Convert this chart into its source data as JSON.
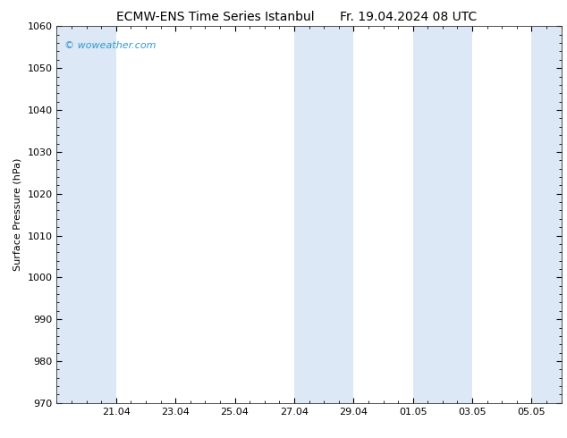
{
  "title_left": "ECMW-ENS Time Series Istanbul",
  "title_right": "Fr. 19.04.2024 08 UTC",
  "ylabel": "Surface Pressure (hPa)",
  "ylim": [
    970,
    1060
  ],
  "yticks": [
    970,
    980,
    990,
    1000,
    1010,
    1020,
    1030,
    1040,
    1050,
    1060
  ],
  "xtick_labels": [
    "21.04",
    "23.04",
    "25.04",
    "27.04",
    "29.04",
    "01.05",
    "03.05",
    "05.05"
  ],
  "background_color": "#ffffff",
  "plot_bg_color": "#ffffff",
  "shaded_color": "#dce8f5",
  "watermark_text": "© woweather.com",
  "watermark_color": "#3399cc",
  "title_fontsize": 10,
  "tick_fontsize": 8,
  "ylabel_fontsize": 8,
  "start_day": 19.333,
  "end_day": 17.0,
  "shaded_bands": [
    {
      "xmin": 0.0,
      "xmax": 2.0
    },
    {
      "xmin": 8.0,
      "xmax": 10.0
    },
    {
      "xmin": 12.0,
      "xmax": 14.0
    },
    {
      "xmin": 16.0,
      "xmax": 17.0
    }
  ],
  "xtick_positions": [
    2.0,
    4.0,
    6.0,
    8.0,
    10.0,
    12.0,
    14.0,
    16.0
  ],
  "xlim": [
    0.0,
    17.0
  ]
}
